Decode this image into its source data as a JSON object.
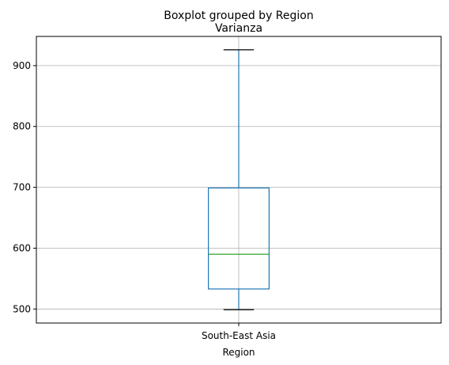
{
  "chart_data": {
    "type": "box",
    "suptitle": "Boxplot grouped by Region",
    "title": "Varianza",
    "xlabel": "Region",
    "ylabel": "",
    "categories": [
      "South-East Asia"
    ],
    "boxes": [
      {
        "category": "South-East Asia",
        "whisker_low": 499,
        "q1": 533,
        "median": 590,
        "q3": 699,
        "whisker_high": 926
      }
    ],
    "ylim": [
      477,
      948
    ],
    "yticks": [
      500,
      600,
      700,
      800,
      900
    ],
    "grid": true,
    "colors": {
      "box": "#1f77b4",
      "median": "#2ca02c",
      "grid": "#b0b0b0",
      "axes": "#000000"
    }
  }
}
